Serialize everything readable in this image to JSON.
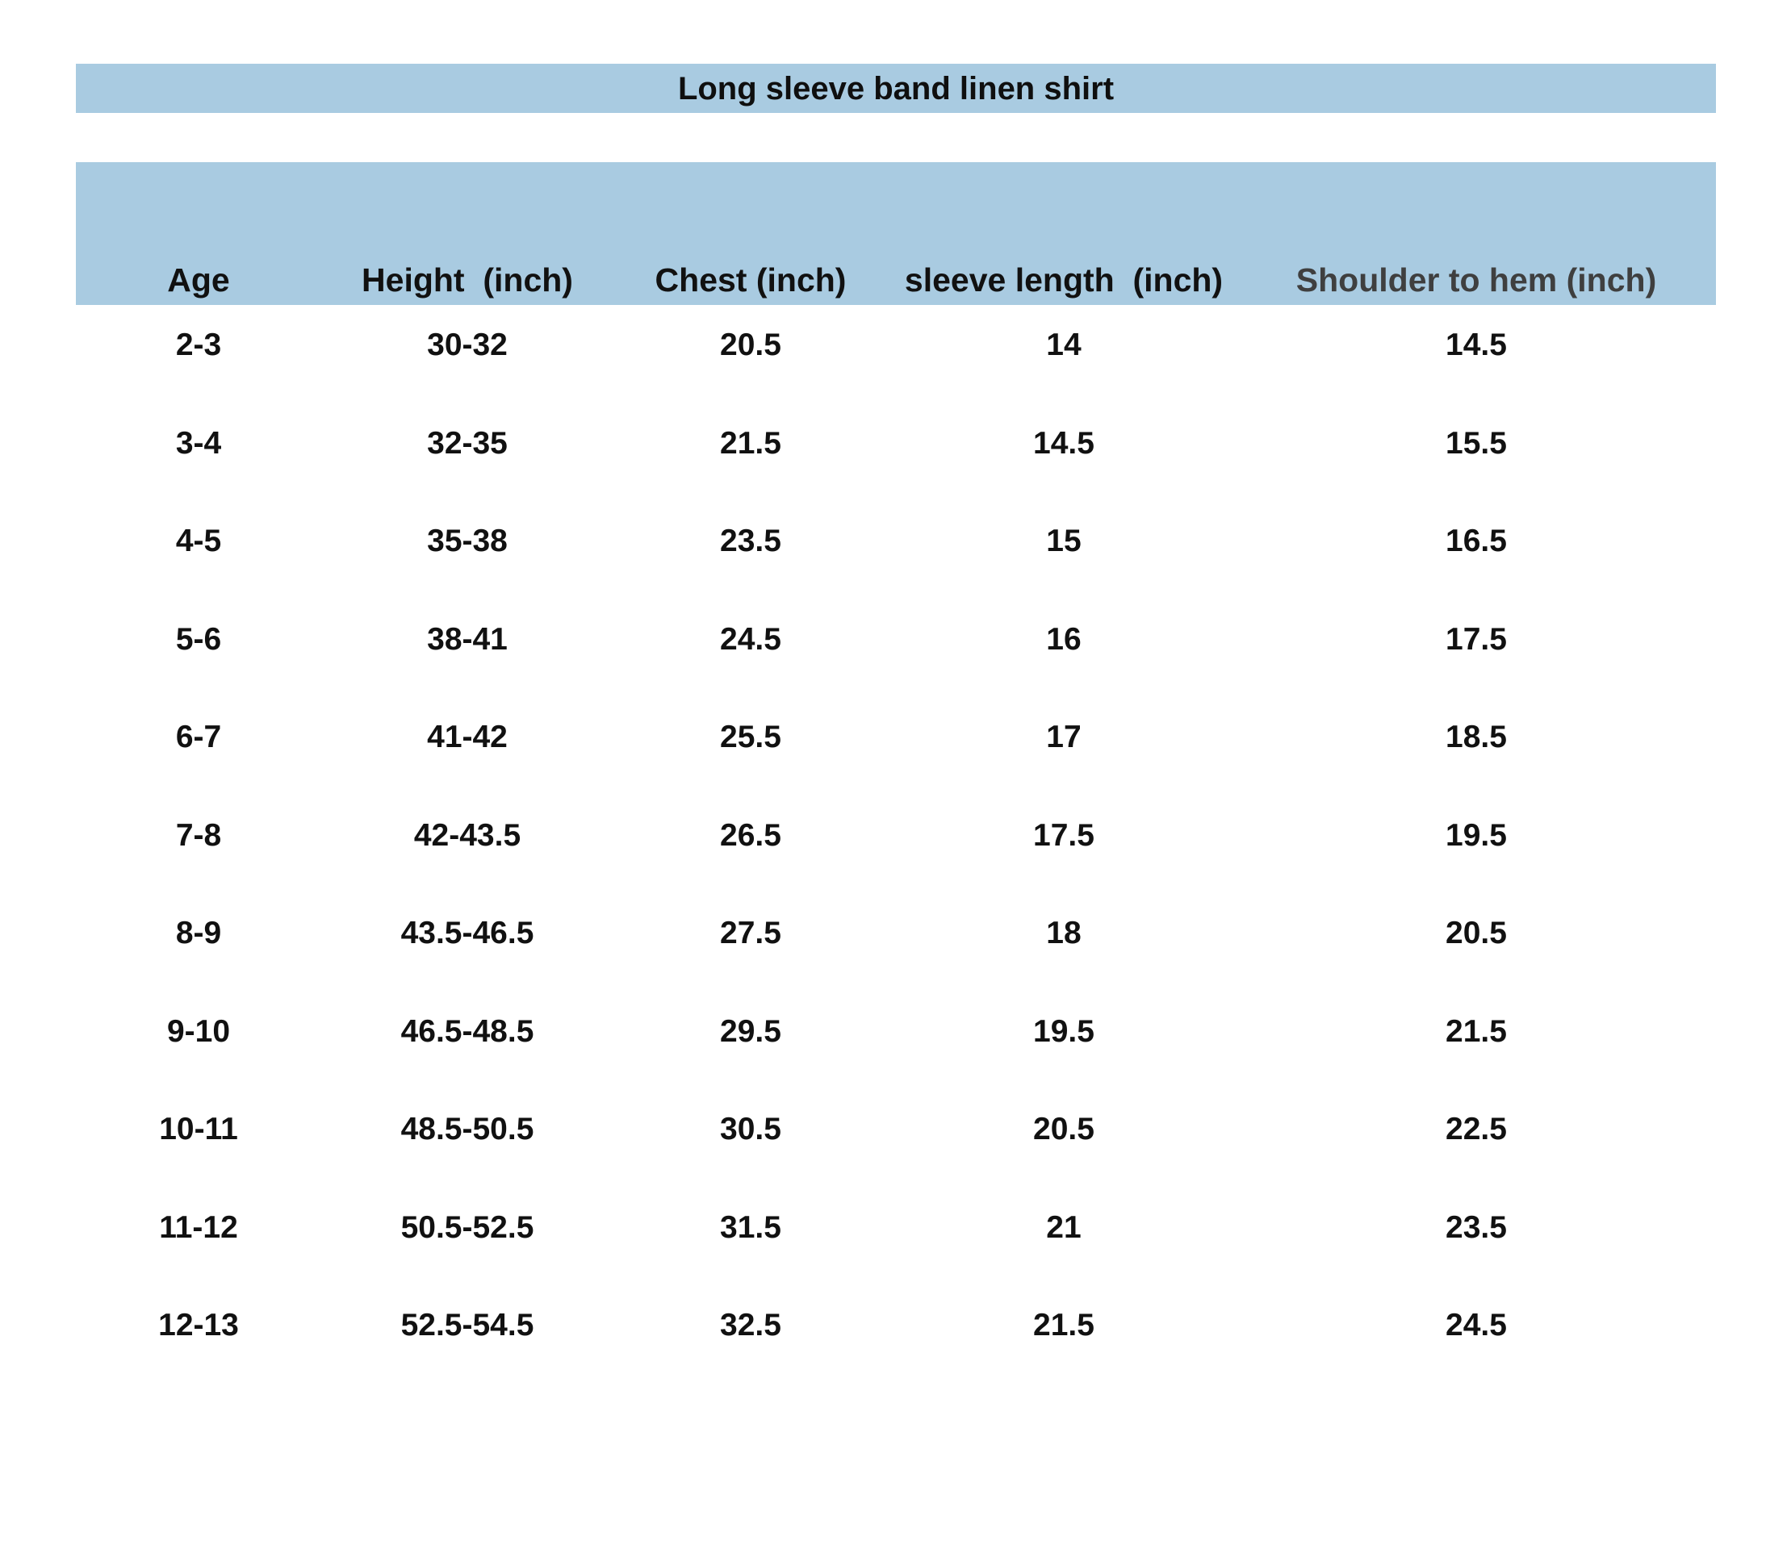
{
  "title": "Long sleeve band linen shirt",
  "columns": [
    "Age",
    "Height  (inch)",
    "Chest (inch)",
    "sleeve length  (inch)",
    "Shoulder to hem (inch)"
  ],
  "rows": [
    [
      "2-3",
      "30-32",
      "20.5",
      "14",
      "14.5"
    ],
    [
      "3-4",
      "32-35",
      "21.5",
      "14.5",
      "15.5"
    ],
    [
      "4-5",
      "35-38",
      "23.5",
      "15",
      "16.5"
    ],
    [
      "5-6",
      "38-41",
      "24.5",
      "16",
      "17.5"
    ],
    [
      "6-7",
      "41-42",
      "25.5",
      "17",
      "18.5"
    ],
    [
      "7-8",
      "42-43.5",
      "26.5",
      "17.5",
      "19.5"
    ],
    [
      "8-9",
      "43.5-46.5",
      "27.5",
      "18",
      "20.5"
    ],
    [
      "9-10",
      "46.5-48.5",
      "29.5",
      "19.5",
      "21.5"
    ],
    [
      "10-11",
      "48.5-50.5",
      "30.5",
      "20.5",
      "22.5"
    ],
    [
      "11-12",
      "50.5-52.5",
      "31.5",
      "21",
      "23.5"
    ],
    [
      "12-13",
      "52.5-54.5",
      "32.5",
      "21.5",
      "24.5"
    ]
  ],
  "colors": {
    "header_fill": "#a9cbe1",
    "text": "#111111",
    "muted_header_text": "#3f3f3f"
  }
}
